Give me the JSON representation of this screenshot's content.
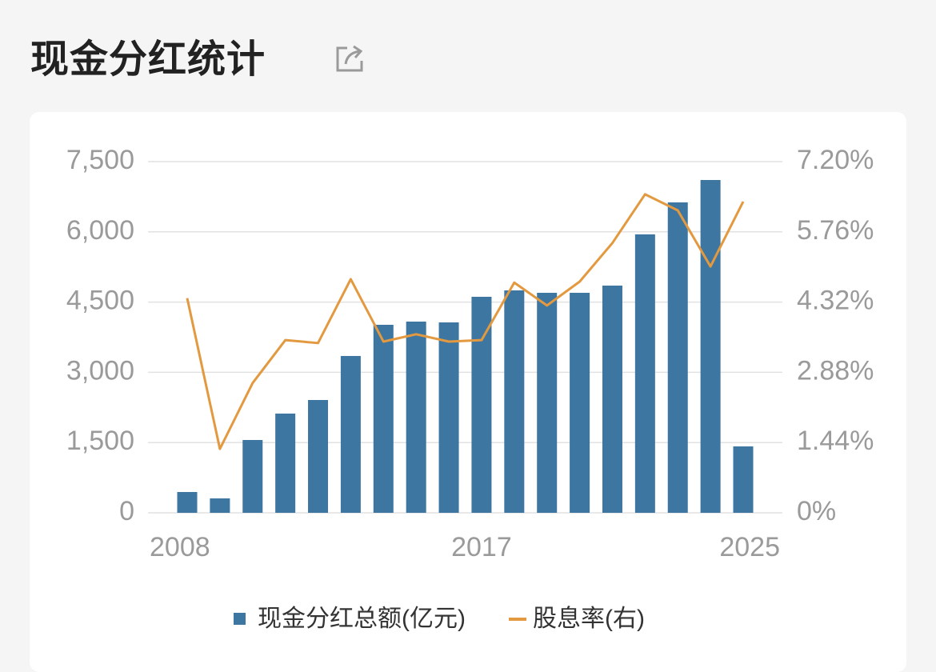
{
  "title": "现金分红统计",
  "chart_data": {
    "type": "bar-line",
    "categories": [
      "2008",
      null,
      null,
      null,
      null,
      null,
      null,
      null,
      null,
      "2017",
      null,
      null,
      null,
      null,
      null,
      null,
      null,
      "2025"
    ],
    "series": [
      {
        "name": "现金分红总额(亿元)",
        "type": "bar",
        "color": "#3d76a0",
        "axis": "y",
        "values": [
          444,
          308,
          1555,
          2119,
          2409,
          3349,
          4015,
          4083,
          4066,
          4613,
          4750,
          4698,
          4698,
          4852,
          5946,
          6629,
          7107,
          1418
        ]
      },
      {
        "name": "股息率(右)",
        "type": "line",
        "color": "#e3993f",
        "axis": "y2",
        "values": [
          4.4,
          1.31,
          2.66,
          3.54,
          3.48,
          4.79,
          3.51,
          3.66,
          3.51,
          3.54,
          4.72,
          4.25,
          4.74,
          5.53,
          6.53,
          6.2,
          5.05,
          6.38
        ]
      }
    ],
    "ylim": [
      0,
      7500
    ],
    "yticks": [
      0,
      {
        "value": 1500,
        "label": "1,500"
      },
      {
        "value": 3000,
        "label": "3,000"
      },
      {
        "value": 4500,
        "label": "4,500"
      },
      {
        "value": 6000,
        "label": "6,000"
      },
      {
        "value": 7500,
        "label": "7,500"
      }
    ],
    "y2lim": [
      0,
      7.2
    ],
    "y2ticks": [
      {
        "value": 0,
        "label": "0%"
      },
      {
        "value": 1.44,
        "label": "1.44%"
      },
      {
        "value": 2.88,
        "label": "2.88%"
      },
      {
        "value": 4.32,
        "label": "4.32%"
      },
      {
        "value": 5.76,
        "label": "5.76%"
      },
      {
        "value": 7.2,
        "label": "7.20%"
      }
    ],
    "grid": true,
    "legend": "bottom"
  }
}
